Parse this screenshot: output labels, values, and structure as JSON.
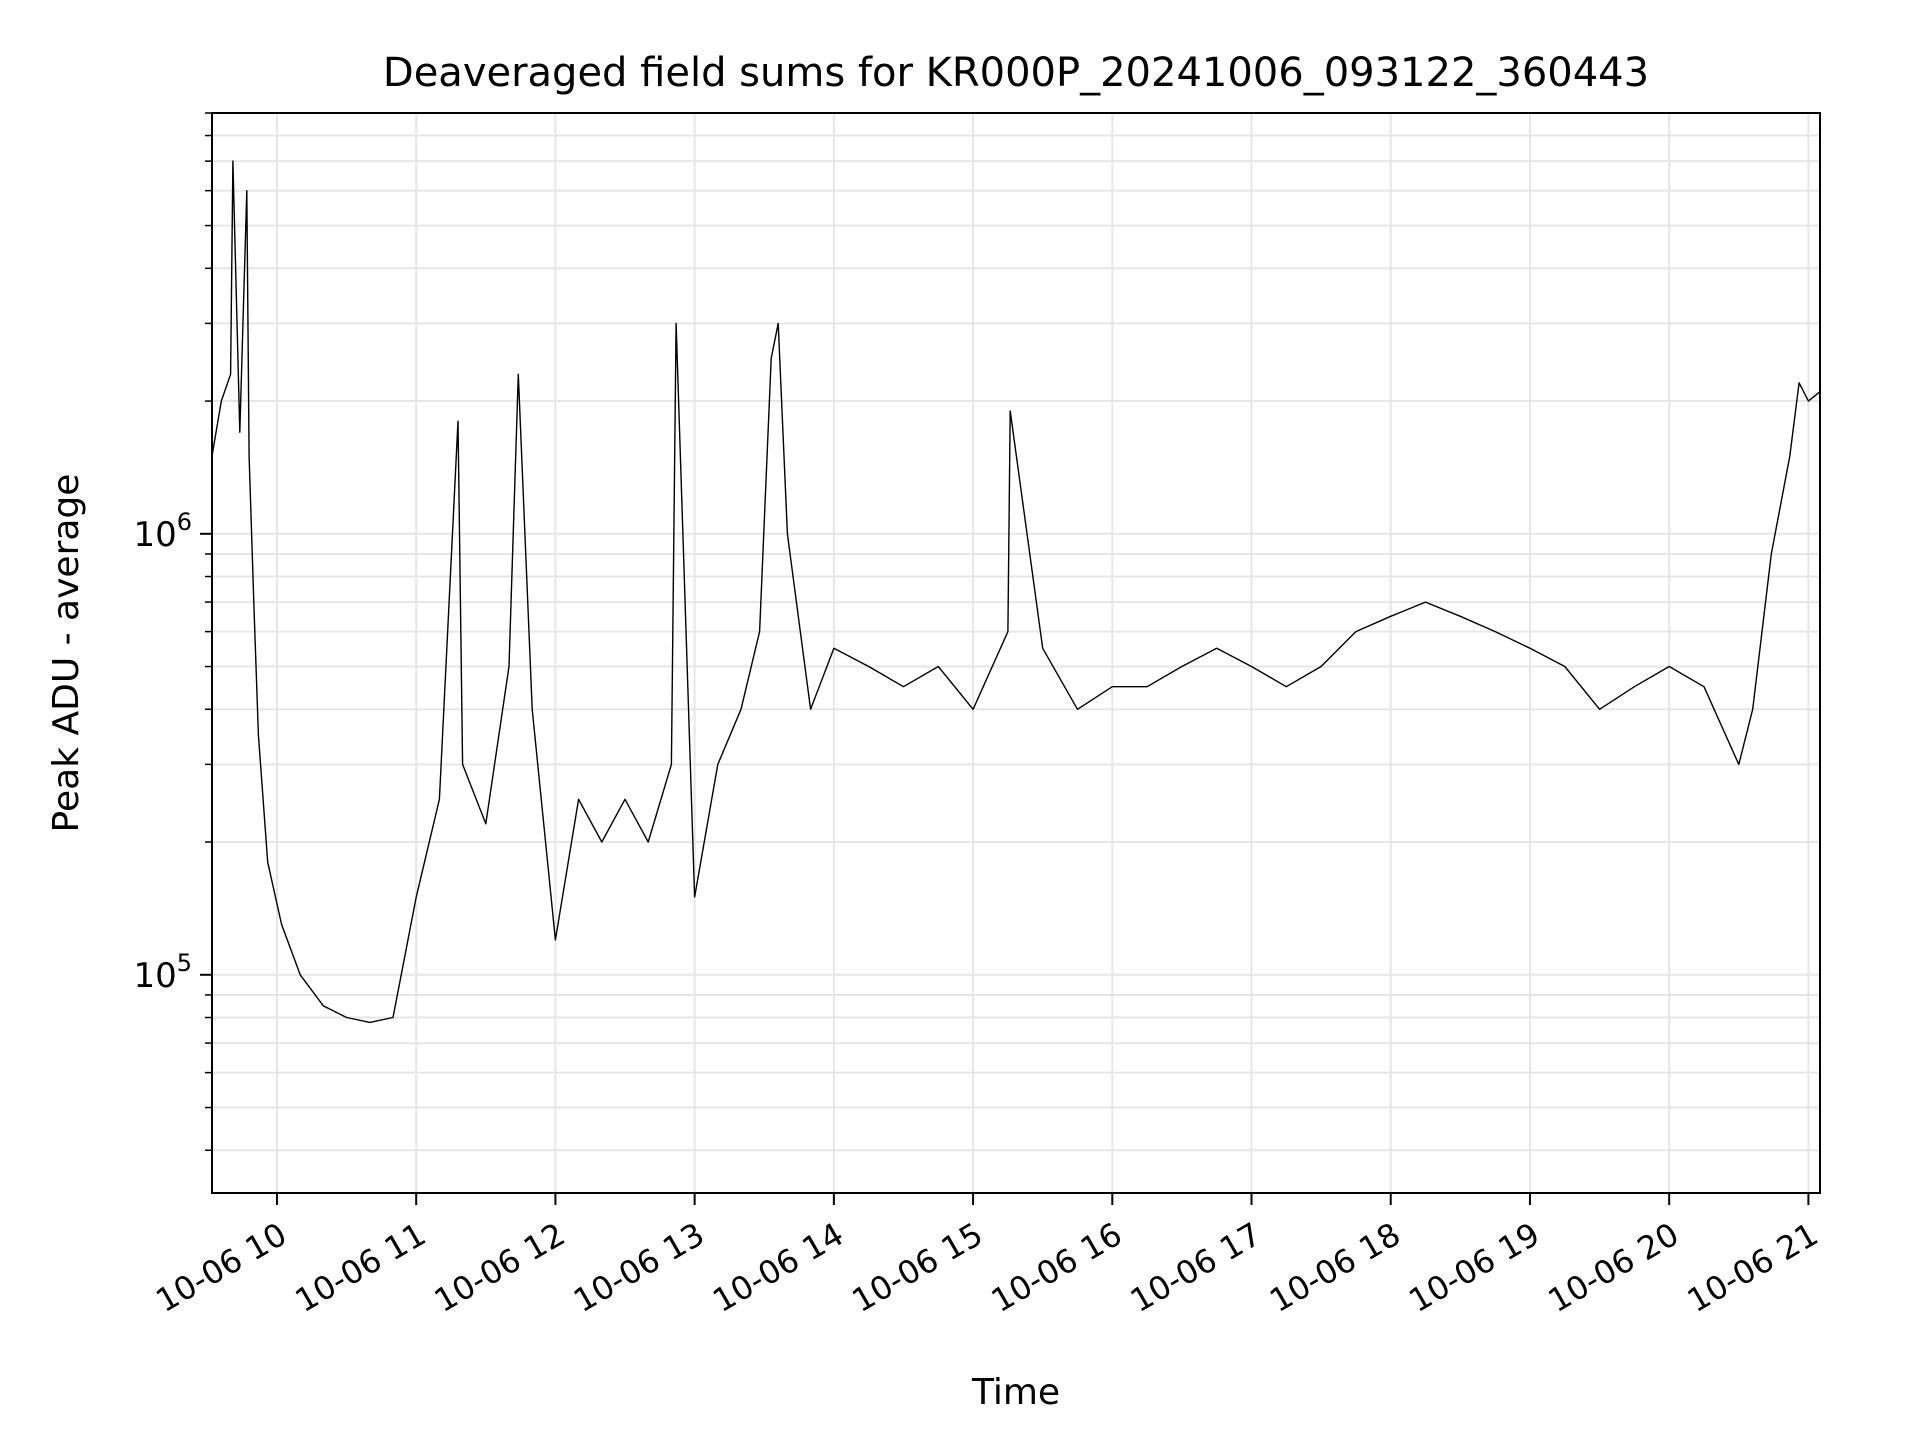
{
  "chart_data": {
    "type": "line",
    "title": "Deaveraged field sums for KR000P_20241006_093122_360443",
    "xlabel": "Time",
    "ylabel": "Peak ADU - average",
    "x_type": "time",
    "x_range": [
      "2024-10-06 09:32",
      "2024-10-06 21:05"
    ],
    "y_scale": "log",
    "ylim": [
      32000,
      9000000
    ],
    "x_ticks": [
      {
        "t": "2024-10-06 10:00",
        "label": "10-06 10"
      },
      {
        "t": "2024-10-06 11:00",
        "label": "10-06 11"
      },
      {
        "t": "2024-10-06 12:00",
        "label": "10-06 12"
      },
      {
        "t": "2024-10-06 13:00",
        "label": "10-06 13"
      },
      {
        "t": "2024-10-06 14:00",
        "label": "10-06 14"
      },
      {
        "t": "2024-10-06 15:00",
        "label": "10-06 15"
      },
      {
        "t": "2024-10-06 16:00",
        "label": "10-06 16"
      },
      {
        "t": "2024-10-06 17:00",
        "label": "10-06 17"
      },
      {
        "t": "2024-10-06 18:00",
        "label": "10-06 18"
      },
      {
        "t": "2024-10-06 19:00",
        "label": "10-06 19"
      },
      {
        "t": "2024-10-06 20:00",
        "label": "10-06 20"
      },
      {
        "t": "2024-10-06 21:00",
        "label": "10-06 21"
      }
    ],
    "y_major_ticks": [
      {
        "value": 100000,
        "base": "10",
        "exp": "5"
      },
      {
        "value": 1000000,
        "base": "10",
        "exp": "6"
      }
    ],
    "grid": true,
    "line_color": "#000000",
    "series": [
      {
        "x": [
          "2024-10-06 09:32",
          "2024-10-06 09:36",
          "2024-10-06 09:40",
          "2024-10-06 09:41",
          "2024-10-06 09:44",
          "2024-10-06 09:47",
          "2024-10-06 09:48",
          "2024-10-06 09:50",
          "2024-10-06 09:52",
          "2024-10-06 09:56",
          "2024-10-06 10:02",
          "2024-10-06 10:10",
          "2024-10-06 10:20",
          "2024-10-06 10:30",
          "2024-10-06 10:40",
          "2024-10-06 10:50",
          "2024-10-06 11:00",
          "2024-10-06 11:10",
          "2024-10-06 11:18",
          "2024-10-06 11:20",
          "2024-10-06 11:30",
          "2024-10-06 11:40",
          "2024-10-06 11:44",
          "2024-10-06 11:50",
          "2024-10-06 12:00",
          "2024-10-06 12:10",
          "2024-10-06 12:20",
          "2024-10-06 12:30",
          "2024-10-06 12:40",
          "2024-10-06 12:50",
          "2024-10-06 12:52",
          "2024-10-06 13:00",
          "2024-10-06 13:10",
          "2024-10-06 13:20",
          "2024-10-06 13:28",
          "2024-10-06 13:33",
          "2024-10-06 13:36",
          "2024-10-06 13:40",
          "2024-10-06 13:50",
          "2024-10-06 14:00",
          "2024-10-06 14:15",
          "2024-10-06 14:30",
          "2024-10-06 14:45",
          "2024-10-06 15:00",
          "2024-10-06 15:15",
          "2024-10-06 15:16",
          "2024-10-06 15:30",
          "2024-10-06 15:45",
          "2024-10-06 16:00",
          "2024-10-06 16:15",
          "2024-10-06 16:30",
          "2024-10-06 16:45",
          "2024-10-06 17:00",
          "2024-10-06 17:15",
          "2024-10-06 17:30",
          "2024-10-06 17:45",
          "2024-10-06 18:00",
          "2024-10-06 18:15",
          "2024-10-06 18:30",
          "2024-10-06 18:45",
          "2024-10-06 19:00",
          "2024-10-06 19:15",
          "2024-10-06 19:30",
          "2024-10-06 19:45",
          "2024-10-06 20:00",
          "2024-10-06 20:15",
          "2024-10-06 20:30",
          "2024-10-06 20:36",
          "2024-10-06 20:44",
          "2024-10-06 20:52",
          "2024-10-06 20:56",
          "2024-10-06 21:00",
          "2024-10-06 21:05"
        ],
        "y": [
          1500000,
          2000000,
          2300000,
          7000000,
          1700000,
          6000000,
          1500000,
          700000,
          350000,
          180000,
          130000,
          100000,
          85000,
          80000,
          78000,
          80000,
          150000,
          250000,
          1800000,
          300000,
          220000,
          500000,
          2300000,
          400000,
          120000,
          250000,
          200000,
          250000,
          200000,
          300000,
          3000000,
          150000,
          300000,
          400000,
          600000,
          2500000,
          3000000,
          1000000,
          400000,
          550000,
          500000,
          450000,
          500000,
          400000,
          600000,
          1900000,
          550000,
          400000,
          450000,
          450000,
          500000,
          550000,
          500000,
          450000,
          500000,
          600000,
          650000,
          700000,
          650000,
          600000,
          550000,
          500000,
          400000,
          450000,
          500000,
          450000,
          300000,
          400000,
          900000,
          1500000,
          2200000,
          2000000,
          2100000
        ]
      }
    ]
  }
}
